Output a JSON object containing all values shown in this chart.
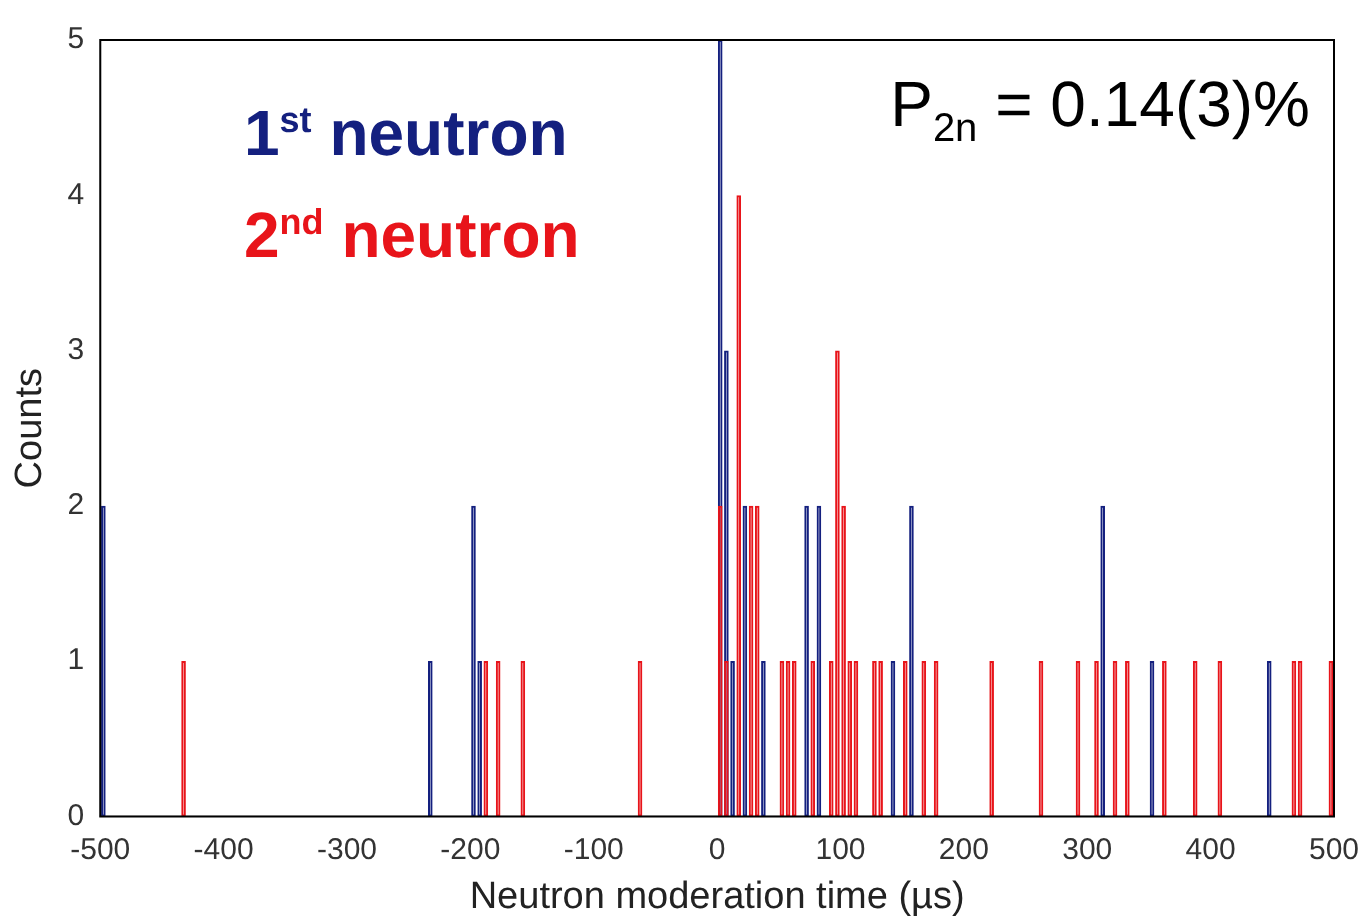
{
  "chart_data": {
    "type": "bar",
    "xlabel": "Neutron moderation time (µs)",
    "ylabel": "Counts",
    "x": [
      -497.5,
      -492.5,
      -487.5,
      -482.5,
      -477.5,
      -472.5,
      -467.5,
      -462.5,
      -457.5,
      -452.5,
      -447.5,
      -442.5,
      -437.5,
      -432.5,
      -427.5,
      -422.5,
      -417.5,
      -412.5,
      -407.5,
      -402.5,
      -397.5,
      -392.5,
      -387.5,
      -382.5,
      -377.5,
      -372.5,
      -367.5,
      -362.5,
      -357.5,
      -352.5,
      -347.5,
      -342.5,
      -337.5,
      -332.5,
      -327.5,
      -322.5,
      -317.5,
      -312.5,
      -307.5,
      -302.5,
      -297.5,
      -292.5,
      -287.5,
      -282.5,
      -277.5,
      -272.5,
      -267.5,
      -262.5,
      -257.5,
      -252.5,
      -247.5,
      -242.5,
      -237.5,
      -232.5,
      -227.5,
      -222.5,
      -217.5,
      -212.5,
      -207.5,
      -202.5,
      -197.5,
      -192.5,
      -187.5,
      -182.5,
      -177.5,
      -172.5,
      -167.5,
      -162.5,
      -157.5,
      -152.5,
      -147.5,
      -142.5,
      -137.5,
      -132.5,
      -127.5,
      -122.5,
      -117.5,
      -112.5,
      -107.5,
      -102.5,
      -97.5,
      -92.5,
      -87.5,
      -82.5,
      -77.5,
      -72.5,
      -67.5,
      -62.5,
      -57.5,
      -52.5,
      -47.5,
      -42.5,
      -37.5,
      -32.5,
      -27.5,
      -22.5,
      -17.5,
      -12.5,
      -7.5,
      -2.5,
      2.5,
      7.5,
      12.5,
      17.5,
      22.5,
      27.5,
      32.5,
      37.5,
      42.5,
      47.5,
      52.5,
      57.5,
      62.5,
      67.5,
      72.5,
      77.5,
      82.5,
      87.5,
      92.5,
      97.5,
      102.5,
      107.5,
      112.5,
      117.5,
      122.5,
      127.5,
      132.5,
      137.5,
      142.5,
      147.5,
      152.5,
      157.5,
      162.5,
      167.5,
      172.5,
      177.5,
      182.5,
      187.5,
      192.5,
      197.5,
      202.5,
      207.5,
      212.5,
      217.5,
      222.5,
      227.5,
      232.5,
      237.5,
      242.5,
      247.5,
      252.5,
      257.5,
      262.5,
      267.5,
      272.5,
      277.5,
      282.5,
      287.5,
      292.5,
      297.5,
      302.5,
      307.5,
      312.5,
      317.5,
      322.5,
      327.5,
      332.5,
      337.5,
      342.5,
      347.5,
      352.5,
      357.5,
      362.5,
      367.5,
      372.5,
      377.5,
      382.5,
      387.5,
      392.5,
      397.5,
      402.5,
      407.5,
      412.5,
      417.5,
      422.5,
      427.5,
      432.5,
      437.5,
      442.5,
      447.5,
      452.5,
      457.5,
      462.5,
      467.5,
      472.5,
      477.5,
      482.5,
      487.5,
      492.5,
      497.5
    ],
    "series": [
      {
        "name": "1$^{st}$ neutron",
        "color": "#14207f",
        "values": [
          2,
          0,
          0,
          0,
          0,
          0,
          0,
          0,
          0,
          0,
          0,
          0,
          0,
          0,
          0,
          0,
          0,
          0,
          0,
          0,
          0,
          0,
          0,
          0,
          0,
          0,
          0,
          0,
          0,
          0,
          0,
          0,
          0,
          0,
          0,
          0,
          0,
          0,
          0,
          0,
          0,
          0,
          0,
          0,
          0,
          0,
          0,
          0,
          0,
          0,
          0,
          0,
          0,
          1,
          0,
          0,
          0,
          0,
          0,
          0,
          2,
          1,
          0,
          0,
          0,
          0,
          0,
          0,
          0,
          0,
          0,
          0,
          0,
          0,
          0,
          0,
          0,
          0,
          0,
          0,
          0,
          0,
          0,
          0,
          0,
          0,
          0,
          0,
          0,
          0,
          0,
          0,
          0,
          0,
          0,
          0,
          0,
          0,
          0,
          0,
          5,
          3,
          1,
          0,
          2,
          0,
          0,
          1,
          0,
          0,
          0,
          0,
          0,
          0,
          2,
          0,
          2,
          0,
          0,
          0,
          0,
          0,
          0,
          0,
          0,
          0,
          0,
          0,
          1,
          0,
          0,
          2,
          0,
          0,
          0,
          0,
          0,
          0,
          0,
          0,
          0,
          0,
          0,
          0,
          0,
          0,
          0,
          0,
          0,
          0,
          0,
          0,
          0,
          0,
          0,
          0,
          0,
          0,
          0,
          0,
          0,
          0,
          2,
          0,
          0,
          0,
          0,
          0,
          0,
          0,
          1,
          0,
          0,
          0,
          0,
          0,
          0,
          0,
          0,
          0,
          0,
          0,
          0,
          0,
          0,
          0,
          0,
          0,
          0,
          1,
          0,
          0,
          0,
          0,
          0,
          0,
          0,
          0,
          0,
          0
        ]
      },
      {
        "name": "2$^{nd}$ neutron",
        "color": "#e8141a",
        "values": [
          0,
          0,
          0,
          0,
          0,
          0,
          0,
          0,
          0,
          0,
          0,
          0,
          0,
          1,
          0,
          0,
          0,
          0,
          0,
          0,
          0,
          0,
          0,
          0,
          0,
          0,
          0,
          0,
          0,
          0,
          0,
          0,
          0,
          0,
          0,
          0,
          0,
          0,
          0,
          0,
          0,
          0,
          0,
          0,
          0,
          0,
          0,
          0,
          0,
          0,
          0,
          0,
          0,
          0,
          0,
          0,
          0,
          0,
          0,
          0,
          0,
          0,
          1,
          0,
          1,
          0,
          0,
          0,
          1,
          0,
          0,
          0,
          0,
          0,
          0,
          0,
          0,
          0,
          0,
          0,
          0,
          0,
          0,
          0,
          0,
          0,
          0,
          1,
          0,
          0,
          0,
          0,
          0,
          0,
          0,
          0,
          0,
          0,
          0,
          0,
          2,
          1,
          0,
          4,
          0,
          2,
          2,
          0,
          0,
          0,
          1,
          1,
          1,
          0,
          0,
          1,
          0,
          0,
          1,
          3,
          2,
          1,
          1,
          0,
          0,
          1,
          1,
          0,
          0,
          0,
          1,
          0,
          0,
          1,
          0,
          1,
          0,
          0,
          0,
          0,
          0,
          0,
          0,
          0,
          1,
          0,
          0,
          0,
          0,
          0,
          0,
          0,
          1,
          0,
          0,
          0,
          0,
          0,
          1,
          0,
          0,
          1,
          0,
          0,
          1,
          0,
          1,
          0,
          0,
          0,
          0,
          0,
          1,
          0,
          0,
          0,
          0,
          1,
          0,
          0,
          0,
          1,
          0,
          0,
          0,
          0,
          0,
          0,
          0,
          0,
          0,
          0,
          0,
          1,
          1,
          0,
          0,
          0,
          0,
          1
        ]
      }
    ],
    "xlim": [
      -500,
      500
    ],
    "xticks": [
      -500,
      -400,
      -300,
      -200,
      -100,
      0,
      100,
      200,
      300,
      400,
      500
    ],
    "ylim": [
      0,
      5
    ],
    "yticks": [
      0,
      1,
      2,
      3,
      4,
      5
    ],
    "legend": "top left",
    "annotations": [
      "P$_{2n}$ = 0.14(3)%"
    ]
  }
}
